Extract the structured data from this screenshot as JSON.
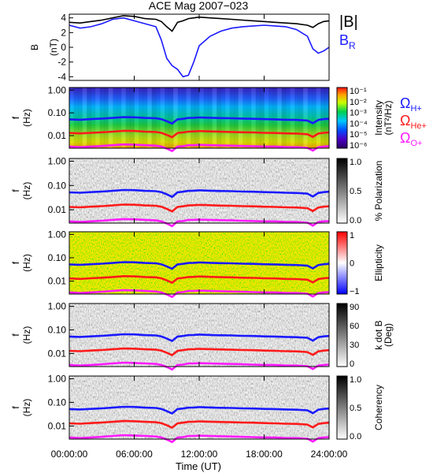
{
  "title": "ACE Mag 2007−023",
  "x_axis": {
    "label": "Time (UT)",
    "ticks": [
      "00:00:00",
      "06:00:00",
      "12:00:00",
      "18:00:00",
      "24:00:00"
    ]
  },
  "colors": {
    "h_plus": "#1a1aff",
    "he_plus": "#ff1a1a",
    "o_plus": "#ff1aff",
    "btotal": "#000000",
    "br": "#1a1aff"
  },
  "chart_data": [
    {
      "type": "line",
      "panel": "b",
      "ylabel": "B\n(nT)",
      "ylim": [
        -4.5,
        4.5
      ],
      "yticks": [
        -4,
        -2,
        0,
        2,
        4
      ],
      "x_hours": [
        0,
        1,
        2,
        3,
        4,
        5,
        6,
        7,
        8,
        8.5,
        9,
        9.5,
        10,
        10.5,
        11,
        11.5,
        12,
        13,
        14,
        15,
        16,
        17,
        18,
        19,
        20,
        21,
        22,
        22.5,
        23,
        23.5,
        24
      ],
      "series": [
        {
          "name": "|B|",
          "color": "#000000",
          "values": [
            3.4,
            3.3,
            3.5,
            3.7,
            4.0,
            4.3,
            4.2,
            3.9,
            3.8,
            3.5,
            2.8,
            2.2,
            3.4,
            3.6,
            3.9,
            4.0,
            4.1,
            4.0,
            3.9,
            3.8,
            3.7,
            3.6,
            3.5,
            3.4,
            3.3,
            3.2,
            3.0,
            2.7,
            3.2,
            3.5,
            3.6
          ]
        },
        {
          "name": "B",
          "subscript": "R",
          "color": "#1a1aff",
          "values": [
            3.0,
            2.6,
            2.8,
            3.2,
            3.8,
            4.0,
            3.6,
            3.2,
            2.8,
            1.0,
            -1.5,
            -2.5,
            -3.0,
            -4.0,
            -3.8,
            -2.0,
            0.2,
            1.5,
            2.2,
            2.6,
            2.8,
            2.9,
            3.0,
            2.9,
            2.8,
            2.4,
            1.5,
            -0.2,
            -0.8,
            -0.5,
            0.0
          ]
        }
      ]
    },
    {
      "type": "heatmap",
      "panel": "intensity",
      "ylabel": "f\n(Hz)",
      "yscale": "log",
      "yticks": [
        "1.00",
        "0.10",
        "0.01"
      ],
      "colorbar": {
        "label": "Intensity\n(nT²/Hz)",
        "scale": "log",
        "ticks": [
          "10⁻¹",
          "10⁻²",
          "10⁻³",
          "10⁻⁴",
          "10⁻⁵",
          "10⁻⁶"
        ]
      },
      "gyrofrequency_labels": [
        {
          "text": "Ω",
          "sub": "H+",
          "color": "#1a1aff"
        },
        {
          "text": "Ω",
          "sub": "He+",
          "color": "#ff1a1a"
        },
        {
          "text": "Ω",
          "sub": "O+",
          "color": "#ff1aff"
        }
      ]
    },
    {
      "type": "heatmap",
      "panel": "polarization",
      "ylabel": "f\n(Hz)",
      "yscale": "log",
      "yticks": [
        "1.00",
        "0.10",
        "0.01"
      ],
      "colorbar": {
        "label": "% Polarization",
        "ticks": [
          "1.0",
          "0.5",
          "0.0"
        ]
      }
    },
    {
      "type": "heatmap",
      "panel": "ellipticity",
      "ylabel": "f\n(Hz)",
      "yscale": "log",
      "yticks": [
        "1.00",
        "0.10",
        "0.01"
      ],
      "colorbar": {
        "label": "Ellipticity",
        "ticks": [
          "1",
          "0",
          "−1"
        ]
      }
    },
    {
      "type": "heatmap",
      "panel": "kdotb",
      "ylabel": "f\n(Hz)",
      "yscale": "log",
      "yticks": [
        "1.00",
        "0.10",
        "0.01"
      ],
      "colorbar": {
        "label": "k dot B\n(Deg)",
        "ticks": [
          "90",
          "60",
          "30",
          "0"
        ]
      }
    },
    {
      "type": "heatmap",
      "panel": "coherency",
      "ylabel": "f\n(Hz)",
      "yscale": "log",
      "yticks": [
        "1.00",
        "0.10",
        "0.01"
      ],
      "colorbar": {
        "label": "Coherency",
        "ticks": [
          "1.0",
          "0.5",
          "0.0"
        ]
      }
    },
    {
      "type": "line",
      "panel": "gyrofrequencies",
      "x_hours": [
        0,
        1,
        2,
        3,
        4,
        5,
        6,
        7,
        8,
        8.5,
        9,
        9.5,
        10,
        10.5,
        11,
        11.5,
        12,
        13,
        14,
        15,
        16,
        17,
        18,
        19,
        20,
        21,
        22,
        22.5,
        23,
        23.5,
        24
      ],
      "series": [
        {
          "name": "ΩH+",
          "color": "#1a1aff",
          "values": [
            0.052,
            0.05,
            0.053,
            0.056,
            0.06,
            0.065,
            0.064,
            0.06,
            0.058,
            0.053,
            0.043,
            0.034,
            0.052,
            0.055,
            0.06,
            0.061,
            0.063,
            0.061,
            0.059,
            0.058,
            0.056,
            0.055,
            0.053,
            0.052,
            0.05,
            0.049,
            0.046,
            0.035,
            0.049,
            0.053,
            0.055
          ]
        },
        {
          "name": "ΩHe+",
          "color": "#ff1a1a",
          "values": [
            0.013,
            0.0125,
            0.0133,
            0.014,
            0.015,
            0.0163,
            0.016,
            0.015,
            0.0145,
            0.0133,
            0.0108,
            0.0085,
            0.013,
            0.0138,
            0.015,
            0.0153,
            0.0158,
            0.0153,
            0.0148,
            0.0145,
            0.014,
            0.0138,
            0.0133,
            0.013,
            0.0125,
            0.0123,
            0.0115,
            0.0088,
            0.0123,
            0.0133,
            0.0138
          ]
        },
        {
          "name": "ΩO+",
          "color": "#ff1aff",
          "values": [
            0.0033,
            0.0031,
            0.0033,
            0.0035,
            0.0038,
            0.0041,
            0.004,
            0.0038,
            0.0036,
            0.0033,
            0.0027,
            0.0021,
            0.0033,
            0.0034,
            0.0038,
            0.0038,
            0.0039,
            0.0038,
            0.0037,
            0.0036,
            0.0035,
            0.0034,
            0.0033,
            0.0033,
            0.0031,
            0.0031,
            0.0029,
            0.0022,
            0.0031,
            0.0033,
            0.0034
          ]
        }
      ]
    }
  ]
}
